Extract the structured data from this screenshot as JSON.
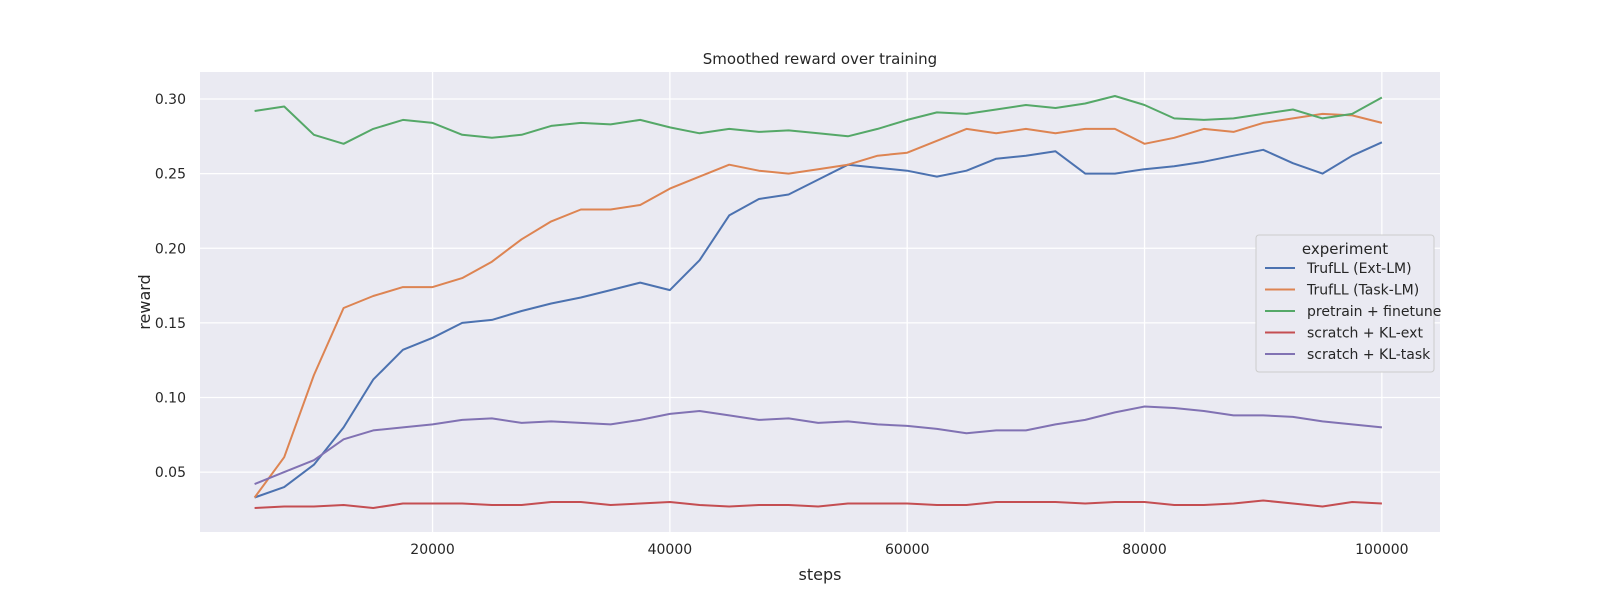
{
  "chart_data": {
    "type": "line",
    "title": "Smoothed reward over training",
    "xlabel": "steps",
    "ylabel": "reward",
    "xlim": [
      400,
      104900
    ],
    "ylim": [
      0.0099,
      0.3181
    ],
    "xticks": [
      20000,
      40000,
      60000,
      80000,
      100000
    ],
    "yticks": [
      0.05,
      0.1,
      0.15,
      0.2,
      0.25,
      0.3
    ],
    "ytick_labels": [
      "0.05",
      "0.10",
      "0.15",
      "0.20",
      "0.25",
      "0.30"
    ],
    "grid": true,
    "background": "#EAEAF2",
    "legend": {
      "title": "experiment",
      "position": "center-right"
    },
    "x": [
      5000,
      7500,
      10000,
      12500,
      15000,
      17500,
      20000,
      22500,
      25000,
      27500,
      30000,
      32500,
      35000,
      37500,
      40000,
      42500,
      45000,
      47500,
      50000,
      52500,
      55000,
      57500,
      60000,
      62500,
      65000,
      67500,
      70000,
      72500,
      75000,
      77500,
      80000,
      82500,
      85000,
      87500,
      90000,
      92500,
      95000,
      97500,
      100000
    ],
    "series": [
      {
        "name": "TrufLL (Ext-LM)",
        "color": "#4C72B0",
        "values": [
          0.033,
          0.04,
          0.055,
          0.08,
          0.112,
          0.132,
          0.14,
          0.15,
          0.152,
          0.158,
          0.163,
          0.167,
          0.172,
          0.177,
          0.172,
          0.192,
          0.222,
          0.233,
          0.236,
          0.246,
          0.256,
          0.254,
          0.252,
          0.248,
          0.252,
          0.26,
          0.262,
          0.265,
          0.25,
          0.25,
          0.253,
          0.255,
          0.258,
          0.262,
          0.266,
          0.257,
          0.25,
          0.262,
          0.271
        ]
      },
      {
        "name": "TrufLL (Task-LM)",
        "color": "#DD8452",
        "values": [
          0.033,
          0.06,
          0.115,
          0.16,
          0.168,
          0.174,
          0.174,
          0.18,
          0.191,
          0.206,
          0.218,
          0.226,
          0.226,
          0.229,
          0.24,
          0.248,
          0.256,
          0.252,
          0.25,
          0.253,
          0.256,
          0.262,
          0.264,
          0.272,
          0.28,
          0.277,
          0.28,
          0.277,
          0.28,
          0.28,
          0.27,
          0.274,
          0.28,
          0.278,
          0.284,
          0.287,
          0.29,
          0.289,
          0.284
        ]
      },
      {
        "name": "pretrain + finetune",
        "color": "#55A868",
        "values": [
          0.292,
          0.295,
          0.276,
          0.27,
          0.28,
          0.286,
          0.284,
          0.276,
          0.274,
          0.276,
          0.282,
          0.284,
          0.283,
          0.286,
          0.281,
          0.277,
          0.28,
          0.278,
          0.279,
          0.277,
          0.275,
          0.28,
          0.286,
          0.291,
          0.29,
          0.293,
          0.296,
          0.294,
          0.297,
          0.302,
          0.296,
          0.287,
          0.286,
          0.287,
          0.29,
          0.293,
          0.287,
          0.29,
          0.301
        ]
      },
      {
        "name": "scratch + KL-ext",
        "color": "#C44E52",
        "values": [
          0.026,
          0.027,
          0.027,
          0.028,
          0.026,
          0.029,
          0.029,
          0.029,
          0.028,
          0.028,
          0.03,
          0.03,
          0.028,
          0.029,
          0.03,
          0.028,
          0.027,
          0.028,
          0.028,
          0.027,
          0.029,
          0.029,
          0.029,
          0.028,
          0.028,
          0.03,
          0.03,
          0.03,
          0.029,
          0.03,
          0.03,
          0.028,
          0.028,
          0.029,
          0.031,
          0.029,
          0.027,
          0.03,
          0.029
        ]
      },
      {
        "name": "scratch + KL-task",
        "color": "#8172B3",
        "values": [
          0.042,
          0.05,
          0.058,
          0.072,
          0.078,
          0.08,
          0.082,
          0.085,
          0.086,
          0.083,
          0.084,
          0.083,
          0.082,
          0.085,
          0.089,
          0.091,
          0.088,
          0.085,
          0.086,
          0.083,
          0.084,
          0.082,
          0.081,
          0.079,
          0.076,
          0.078,
          0.078,
          0.082,
          0.085,
          0.09,
          0.094,
          0.093,
          0.091,
          0.088,
          0.088,
          0.087,
          0.084,
          0.082,
          0.08
        ]
      }
    ]
  }
}
